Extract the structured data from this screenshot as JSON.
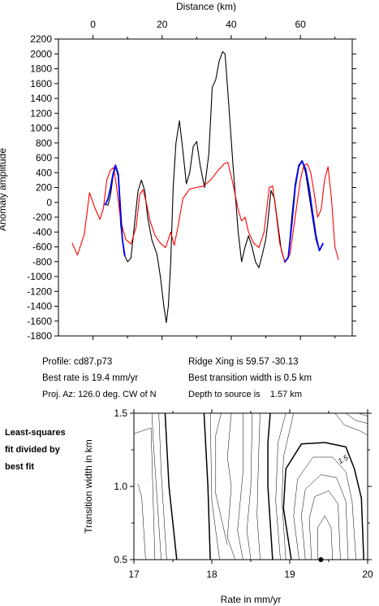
{
  "chart_data": [
    {
      "type": "line",
      "title": "",
      "xlabel": "Distance (km)",
      "ylabel": "Anomaly amplitude",
      "xlim": [
        -10,
        75
      ],
      "ylim": [
        -1800,
        2200
      ],
      "xticks": [
        0,
        20,
        40,
        60
      ],
      "yticks": [
        -1800,
        -1600,
        -1400,
        -1200,
        -1000,
        -800,
        -600,
        -400,
        -200,
        0,
        200,
        400,
        600,
        800,
        1000,
        1200,
        1400,
        1600,
        1800,
        2000,
        2200
      ],
      "grid": false,
      "series": [
        {
          "color": "#000000",
          "x": [
            3.5,
            4.3,
            5,
            5.8,
            6.5,
            7.3,
            8,
            9,
            10,
            11,
            12,
            13,
            14,
            15,
            15.8,
            17,
            18.5,
            19.5,
            20.5,
            21.2,
            21.8,
            22.5,
            23.2,
            24,
            25,
            26,
            27,
            28,
            29,
            30,
            31,
            32.3,
            33.5,
            34.5,
            35.5,
            36.5,
            37.5,
            38.2,
            39,
            40.5,
            42,
            43,
            44,
            45,
            46,
            47,
            48,
            49,
            50,
            50.5,
            51.5,
            52.5,
            53.5,
            54.5,
            55.5,
            56.5,
            57.5,
            58.5,
            59.5,
            60.5,
            61.5,
            62.5,
            63.5,
            64.5,
            65.5,
            66.5
          ],
          "y": [
            -20,
            -40,
            80,
            350,
            480,
            350,
            -300,
            -700,
            -800,
            -750,
            -300,
            150,
            300,
            150,
            -200,
            -500,
            -700,
            -1000,
            -1400,
            -1620,
            -1400,
            -800,
            200,
            800,
            1100,
            700,
            250,
            400,
            750,
            820,
            500,
            200,
            650,
            1550,
            1650,
            1900,
            2030,
            2000,
            1500,
            500,
            -400,
            -800,
            -600,
            -450,
            -600,
            -800,
            -880,
            -700,
            -500,
            -300,
            160,
            50,
            -300,
            -650,
            -800,
            -750,
            -200,
            250,
            500,
            560,
            400,
            100,
            -200,
            -500,
            -650,
            -550
          ]
        },
        {
          "color": "#ff0000",
          "x": [
            -6,
            -4.5,
            -2.5,
            -1,
            0.5,
            2,
            3,
            4,
            5,
            6,
            7,
            8,
            9.5,
            11,
            12.5,
            13.5,
            14.5,
            15.5,
            16.5,
            18,
            19.5,
            21,
            22.5,
            23.5,
            24.5,
            26,
            28,
            30,
            32,
            34,
            36,
            38,
            39,
            40.5,
            42,
            43,
            44,
            45,
            46.5,
            48,
            49.5,
            51,
            52,
            53,
            54,
            55.5,
            57,
            58.5,
            60,
            61,
            62,
            63,
            64,
            65,
            66,
            67,
            68,
            69,
            70,
            71
          ],
          "y": [
            -550,
            -710,
            -430,
            130,
            -70,
            -230,
            -80,
            300,
            430,
            470,
            150,
            -250,
            -500,
            -560,
            -330,
            100,
            170,
            -20,
            -250,
            -450,
            -550,
            -610,
            -400,
            -580,
            -350,
            50,
            180,
            200,
            220,
            300,
            420,
            520,
            540,
            250,
            -100,
            -250,
            -200,
            -400,
            -550,
            -610,
            -400,
            200,
            220,
            -150,
            -550,
            -810,
            -700,
            -200,
            300,
            500,
            520,
            400,
            120,
            -200,
            -100,
            300,
            480,
            50,
            -600,
            -770
          ]
        },
        {
          "color": "#0000ff",
          "x": [
            3.5,
            4.3,
            5,
            5.8,
            6.5,
            7.3,
            8.5,
            9.2
          ],
          "y": [
            -30,
            40,
            180,
            380,
            500,
            380,
            -500,
            -720
          ]
        },
        {
          "color": "#0000ff",
          "x": [
            55.5,
            56.5,
            57.5,
            58.5,
            59.5,
            60.5,
            61.5,
            62.5,
            63.5,
            64.5,
            65.5,
            66.5
          ],
          "y": [
            -800,
            -740,
            -300,
            200,
            480,
            560,
            450,
            200,
            -130,
            -450,
            -650,
            -560
          ]
        }
      ]
    },
    {
      "type": "contour",
      "title": "",
      "xlabel": "Rate in mm/yr",
      "ylabel": "Transition width in km",
      "xlim": [
        17,
        20
      ],
      "ylim": [
        0.5,
        1.5
      ],
      "xticks": [
        17,
        18,
        19,
        20
      ],
      "yticks": [
        0.5,
        1.0,
        1.5
      ],
      "contour_labels": [
        {
          "label": "1.5",
          "x": 19.7,
          "y": 1.17
        }
      ],
      "best_fit_point": {
        "x": 19.4,
        "y": 0.5
      },
      "lines": [
        {
          "weight": "thin",
          "points": [
            [
              17.0,
              1.36
            ],
            [
              17.22,
              1.4
            ],
            [
              17.27,
              0.5
            ]
          ]
        },
        {
          "weight": "thin",
          "points": [
            [
              17.15,
              0.5
            ],
            [
              17.1,
              0.93
            ],
            [
              17.05,
              1.02
            ]
          ]
        },
        {
          "weight": "thin",
          "points": [
            [
              17.35,
              0.5
            ],
            [
              17.3,
              0.9
            ],
            [
              17.25,
              1.3
            ],
            [
              17.23,
              1.5
            ]
          ]
        },
        {
          "weight": "thin",
          "points": [
            [
              17.42,
              0.5
            ],
            [
              17.35,
              1.1
            ],
            [
              17.32,
              1.5
            ]
          ]
        },
        {
          "weight": "bold",
          "points": [
            [
              17.55,
              0.5
            ],
            [
              17.45,
              1.0
            ],
            [
              17.4,
              1.5
            ]
          ]
        },
        {
          "weight": "bold",
          "points": [
            [
              17.98,
              0.5
            ],
            [
              17.95,
              1.0
            ],
            [
              17.9,
              1.5
            ]
          ]
        },
        {
          "weight": "thin",
          "points": [
            [
              18.1,
              0.5
            ],
            [
              18.0,
              0.9
            ],
            [
              17.98,
              1.5
            ]
          ]
        },
        {
          "weight": "thin",
          "points": [
            [
              18.2,
              0.6
            ],
            [
              18.05,
              0.95
            ],
            [
              18.05,
              1.35
            ],
            [
              18.12,
              1.5
            ]
          ]
        },
        {
          "weight": "thin",
          "points": [
            [
              18.3,
              0.5
            ],
            [
              18.2,
              0.65
            ],
            [
              18.25,
              1.0
            ],
            [
              18.2,
              1.2
            ],
            [
              18.25,
              1.5
            ]
          ]
        },
        {
          "weight": "thin",
          "points": [
            [
              18.4,
              0.5
            ],
            [
              18.33,
              0.7
            ],
            [
              18.4,
              1.1
            ],
            [
              18.4,
              1.5
            ]
          ]
        },
        {
          "weight": "thin",
          "points": [
            [
              18.5,
              0.5
            ],
            [
              18.45,
              0.7
            ],
            [
              18.5,
              1.0
            ],
            [
              18.52,
              1.5
            ]
          ]
        },
        {
          "weight": "thin",
          "points": [
            [
              18.62,
              0.5
            ],
            [
              18.58,
              0.8
            ],
            [
              18.6,
              1.2
            ],
            [
              18.62,
              1.5
            ]
          ]
        },
        {
          "weight": "bold",
          "points": [
            [
              18.78,
              0.5
            ],
            [
              18.72,
              1.0
            ],
            [
              18.72,
              1.3
            ],
            [
              18.75,
              1.5
            ]
          ]
        },
        {
          "weight": "thin",
          "points": [
            [
              18.88,
              0.5
            ],
            [
              18.82,
              0.9
            ],
            [
              18.85,
              1.3
            ],
            [
              18.95,
              1.5
            ]
          ]
        },
        {
          "weight": "thin",
          "points": [
            [
              18.95,
              0.5
            ],
            [
              18.9,
              0.9
            ],
            [
              18.92,
              1.2
            ],
            [
              19.05,
              1.5
            ]
          ]
        },
        {
          "weight": "bold",
          "points": [
            [
              19.02,
              0.5
            ],
            [
              18.92,
              0.85
            ],
            [
              18.95,
              1.12
            ],
            [
              19.15,
              1.29
            ],
            [
              19.45,
              1.3
            ],
            [
              19.72,
              1.27
            ],
            [
              19.83,
              1.12
            ],
            [
              19.92,
              0.92
            ],
            [
              19.95,
              0.5
            ]
          ]
        },
        {
          "weight": "thin",
          "points": [
            [
              19.12,
              0.5
            ],
            [
              19.05,
              0.8
            ],
            [
              19.1,
              1.05
            ],
            [
              19.3,
              1.2
            ],
            [
              19.55,
              1.2
            ],
            [
              19.72,
              1.1
            ],
            [
              19.8,
              0.9
            ],
            [
              19.85,
              0.5
            ]
          ]
        },
        {
          "weight": "thin",
          "points": [
            [
              19.2,
              0.5
            ],
            [
              19.15,
              0.8
            ],
            [
              19.2,
              0.98
            ],
            [
              19.4,
              1.08
            ],
            [
              19.6,
              1.06
            ],
            [
              19.72,
              0.9
            ],
            [
              19.75,
              0.5
            ]
          ]
        },
        {
          "weight": "thin",
          "points": [
            [
              19.28,
              0.5
            ],
            [
              19.25,
              0.78
            ],
            [
              19.32,
              0.93
            ],
            [
              19.5,
              0.97
            ],
            [
              19.62,
              0.88
            ],
            [
              19.65,
              0.5
            ]
          ]
        },
        {
          "weight": "thin",
          "points": [
            [
              19.36,
              0.5
            ],
            [
              19.36,
              0.72
            ],
            [
              19.45,
              0.8
            ],
            [
              19.53,
              0.72
            ],
            [
              19.55,
              0.5
            ]
          ]
        },
        {
          "weight": "thin",
          "points": [
            [
              19.58,
              1.5
            ],
            [
              19.7,
              1.42
            ],
            [
              19.9,
              1.38
            ],
            [
              20.0,
              1.35
            ]
          ]
        },
        {
          "weight": "thin",
          "points": [
            [
              19.72,
              1.5
            ],
            [
              19.85,
              1.45
            ],
            [
              20.0,
              1.43
            ]
          ]
        },
        {
          "weight": "thin",
          "points": [
            [
              19.88,
              1.5
            ],
            [
              20.0,
              1.48
            ]
          ]
        }
      ]
    }
  ],
  "info": {
    "profile": "Profile: cd87.p73",
    "ridge_xing": "Ridge Xing is 59.57 -30.13",
    "best_rate": "Best rate is 19.4 mm/yr",
    "best_width": "Best transition width is 0.5 km",
    "proj_az": "Proj. Az: 126.0 deg. CW of N",
    "depth": "Depth to source is    1.57 km"
  },
  "side_note": [
    "Least-squares",
    "fit divided by",
    "best fit"
  ],
  "colors": {
    "series_black": "#000000",
    "series_red": "#ff0000",
    "series_blue": "#0000ff",
    "background": "#ffffff"
  }
}
